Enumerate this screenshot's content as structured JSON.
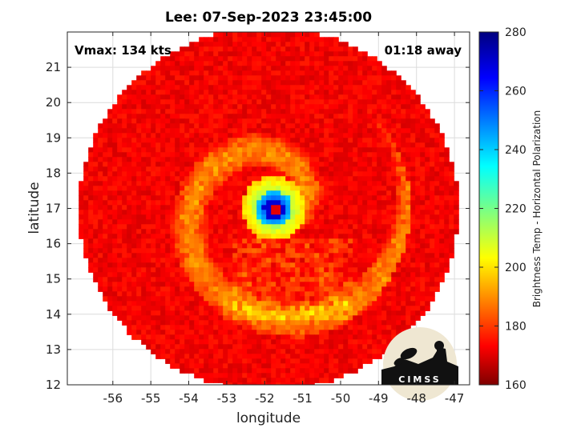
{
  "chart_data": {
    "type": "heatmap",
    "title": "Lee: 07-Sep-2023 23:45:00",
    "xlabel": "longitude",
    "ylabel": "latitude",
    "xlim": [
      -57.2,
      -46.6
    ],
    "ylim": [
      12,
      22
    ],
    "xticks": [
      -56,
      -55,
      -54,
      -53,
      -52,
      -51,
      -50,
      -49,
      -48,
      -47
    ],
    "yticks": [
      12,
      13,
      14,
      15,
      16,
      17,
      18,
      19,
      20,
      21
    ],
    "grid": true,
    "annotations": {
      "vmax": "Vmax: 134 kts",
      "time_away": "01:18 away"
    },
    "storm_center": {
      "lon": -51.75,
      "lat": 17.0
    },
    "swath": {
      "center_lon": -51.9,
      "center_lat": 16.98,
      "radius_lon": 5.0,
      "radius_lat": 5.15
    },
    "colorbar": {
      "label": "Brightness Temp - Horizontal Polarization",
      "min": 160,
      "max": 280,
      "ticks": [
        160,
        180,
        200,
        220,
        240,
        260,
        280
      ],
      "colormap": "jet"
    },
    "logo": {
      "text": "CIMSS"
    }
  }
}
